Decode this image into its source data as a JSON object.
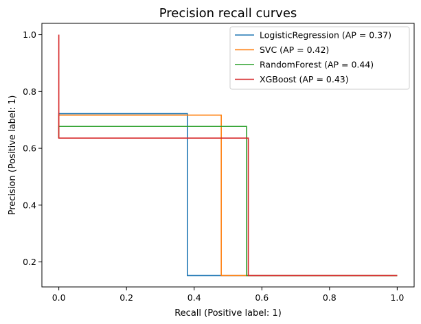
{
  "chart_data": {
    "type": "line",
    "title": "Precision recall curves",
    "xlabel": "Recall (Positive label: 1)",
    "ylabel": "Precision (Positive label: 1)",
    "xlim": [
      -0.05,
      1.05
    ],
    "ylim": [
      0.112,
      1.04
    ],
    "xticks": [
      0.0,
      0.2,
      0.4,
      0.6,
      0.8,
      1.0
    ],
    "xtick_labels": [
      "0.0",
      "0.2",
      "0.4",
      "0.6",
      "0.8",
      "1.0"
    ],
    "yticks": [
      0.2,
      0.4,
      0.6,
      0.8,
      1.0
    ],
    "ytick_labels": [
      "0.2",
      "0.4",
      "0.6",
      "0.8",
      "1.0"
    ],
    "grid": false,
    "legend_position": "top-right",
    "step": "post",
    "series": [
      {
        "name": "LogisticRegression (AP = 0.37)",
        "color": "#1f77b4",
        "x": [
          0.0,
          0.0,
          0.38,
          0.38,
          1.0
        ],
        "y": [
          0.636,
          0.722,
          0.722,
          0.152,
          0.152
        ]
      },
      {
        "name": "SVC (AP = 0.42)",
        "color": "#ff7f0e",
        "x": [
          0.0,
          0.0,
          0.48,
          0.48,
          1.0
        ],
        "y": [
          0.636,
          0.717,
          0.717,
          0.152,
          0.152
        ]
      },
      {
        "name": "RandomForest (AP = 0.44)",
        "color": "#2ca02c",
        "x": [
          0.0,
          0.0,
          0.555,
          0.555,
          1.0
        ],
        "y": [
          0.636,
          0.677,
          0.677,
          0.152,
          0.152
        ]
      },
      {
        "name": "XGBoost (AP = 0.43)",
        "color": "#d62728",
        "x": [
          0.0,
          0.0,
          0.56,
          0.56,
          1.0
        ],
        "y": [
          1.0,
          0.636,
          0.636,
          0.152,
          0.152
        ]
      }
    ]
  }
}
